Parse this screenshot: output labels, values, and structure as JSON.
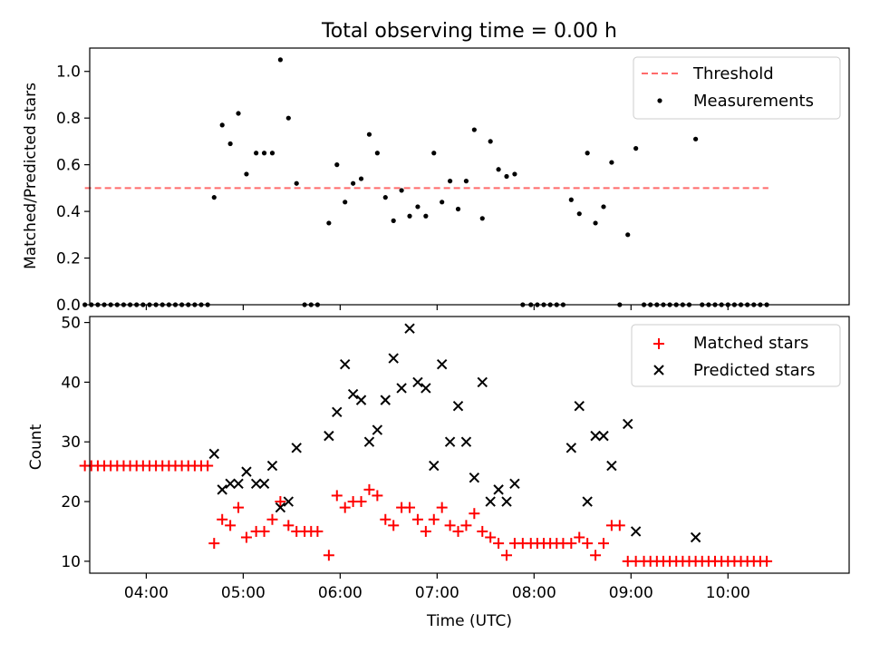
{
  "figure": {
    "title": "Total observing time = 0.00 h"
  },
  "chart_data": [
    {
      "type": "scatter",
      "title": "Total observing time = 0.00 h",
      "xlabel": "",
      "ylabel": "Matched/Predicted stars",
      "xlim": [
        "03:25",
        "11:15"
      ],
      "ylim": [
        0,
        1.1
      ],
      "x_ticks": [
        "04:00",
        "05:00",
        "06:00",
        "07:00",
        "08:00",
        "09:00",
        "10:00"
      ],
      "x_tick_labels_shown": false,
      "y_ticks": [
        0.0,
        0.2,
        0.4,
        0.6,
        0.8,
        1.0
      ],
      "y_tick_labels": [
        "0.0",
        "0.2",
        "0.4",
        "0.6",
        "0.8",
        "1.0"
      ],
      "legend_position": "top-right",
      "grid": false,
      "threshold": {
        "name": "Threshold",
        "value": 0.5,
        "x_range": [
          "03:22",
          "10:25"
        ],
        "style": "dashed",
        "color": "#ff6b6b"
      },
      "series": [
        {
          "name": "Measurements",
          "marker": "dot",
          "color": "#000000",
          "points": [
            [
              "03:22",
              0.0
            ],
            [
              "03:26",
              0.0
            ],
            [
              "03:30",
              0.0
            ],
            [
              "03:34",
              0.0
            ],
            [
              "03:38",
              0.0
            ],
            [
              "03:42",
              0.0
            ],
            [
              "03:46",
              0.0
            ],
            [
              "03:50",
              0.0
            ],
            [
              "03:54",
              0.0
            ],
            [
              "03:58",
              0.0
            ],
            [
              "04:02",
              0.0
            ],
            [
              "04:06",
              0.0
            ],
            [
              "04:10",
              0.0
            ],
            [
              "04:14",
              0.0
            ],
            [
              "04:18",
              0.0
            ],
            [
              "04:22",
              0.0
            ],
            [
              "04:26",
              0.0
            ],
            [
              "04:30",
              0.0
            ],
            [
              "04:34",
              0.0
            ],
            [
              "04:38",
              0.0
            ],
            [
              "04:42",
              0.46
            ],
            [
              "04:47",
              0.77
            ],
            [
              "04:52",
              0.69
            ],
            [
              "04:57",
              0.82
            ],
            [
              "05:02",
              0.56
            ],
            [
              "05:08",
              0.65
            ],
            [
              "05:13",
              0.65
            ],
            [
              "05:18",
              0.65
            ],
            [
              "05:23",
              1.05
            ],
            [
              "05:28",
              0.8
            ],
            [
              "05:33",
              0.52
            ],
            [
              "05:38",
              0.0
            ],
            [
              "05:42",
              0.0
            ],
            [
              "05:46",
              0.0
            ],
            [
              "05:53",
              0.35
            ],
            [
              "05:58",
              0.6
            ],
            [
              "06:03",
              0.44
            ],
            [
              "06:08",
              0.52
            ],
            [
              "06:13",
              0.54
            ],
            [
              "06:18",
              0.73
            ],
            [
              "06:23",
              0.65
            ],
            [
              "06:28",
              0.46
            ],
            [
              "06:33",
              0.36
            ],
            [
              "06:38",
              0.49
            ],
            [
              "06:43",
              0.38
            ],
            [
              "06:48",
              0.42
            ],
            [
              "06:53",
              0.38
            ],
            [
              "06:58",
              0.65
            ],
            [
              "07:03",
              0.44
            ],
            [
              "07:08",
              0.53
            ],
            [
              "07:13",
              0.41
            ],
            [
              "07:18",
              0.53
            ],
            [
              "07:23",
              0.75
            ],
            [
              "07:28",
              0.37
            ],
            [
              "07:33",
              0.7
            ],
            [
              "07:38",
              0.58
            ],
            [
              "07:43",
              0.55
            ],
            [
              "07:48",
              0.56
            ],
            [
              "07:53",
              0.0
            ],
            [
              "07:58",
              0.0
            ],
            [
              "08:02",
              0.0
            ],
            [
              "08:06",
              0.0
            ],
            [
              "08:10",
              0.0
            ],
            [
              "08:14",
              0.0
            ],
            [
              "08:18",
              0.0
            ],
            [
              "08:23",
              0.45
            ],
            [
              "08:28",
              0.39
            ],
            [
              "08:33",
              0.65
            ],
            [
              "08:38",
              0.35
            ],
            [
              "08:43",
              0.42
            ],
            [
              "08:48",
              0.61
            ],
            [
              "08:53",
              0.0
            ],
            [
              "08:58",
              0.3
            ],
            [
              "09:03",
              0.67
            ],
            [
              "09:08",
              0.0
            ],
            [
              "09:12",
              0.0
            ],
            [
              "09:16",
              0.0
            ],
            [
              "09:20",
              0.0
            ],
            [
              "09:24",
              0.0
            ],
            [
              "09:28",
              0.0
            ],
            [
              "09:32",
              0.0
            ],
            [
              "09:36",
              0.0
            ],
            [
              "09:40",
              0.71
            ],
            [
              "09:44",
              0.0
            ],
            [
              "09:48",
              0.0
            ],
            [
              "09:52",
              0.0
            ],
            [
              "09:56",
              0.0
            ],
            [
              "10:00",
              0.0
            ],
            [
              "10:04",
              0.0
            ],
            [
              "10:08",
              0.0
            ],
            [
              "10:12",
              0.0
            ],
            [
              "10:16",
              0.0
            ],
            [
              "10:20",
              0.0
            ],
            [
              "10:24",
              0.0
            ]
          ]
        }
      ]
    },
    {
      "type": "scatter",
      "title": "",
      "xlabel": "Time (UTC)",
      "ylabel": "Count",
      "xlim": [
        "03:25",
        "11:15"
      ],
      "ylim": [
        8,
        51
      ],
      "x_ticks": [
        "04:00",
        "05:00",
        "06:00",
        "07:00",
        "08:00",
        "09:00",
        "10:00"
      ],
      "x_tick_labels": [
        "04:00",
        "05:00",
        "06:00",
        "07:00",
        "08:00",
        "09:00",
        "10:00"
      ],
      "y_ticks": [
        10,
        20,
        30,
        40,
        50
      ],
      "y_tick_labels": [
        "10",
        "20",
        "30",
        "40",
        "50"
      ],
      "legend_position": "top-right",
      "grid": false,
      "series": [
        {
          "name": "Matched stars",
          "marker": "plus",
          "color": "#ff0000",
          "points": [
            [
              "03:22",
              26
            ],
            [
              "03:26",
              26
            ],
            [
              "03:30",
              26
            ],
            [
              "03:34",
              26
            ],
            [
              "03:38",
              26
            ],
            [
              "03:42",
              26
            ],
            [
              "03:46",
              26
            ],
            [
              "03:50",
              26
            ],
            [
              "03:54",
              26
            ],
            [
              "03:58",
              26
            ],
            [
              "04:02",
              26
            ],
            [
              "04:06",
              26
            ],
            [
              "04:10",
              26
            ],
            [
              "04:14",
              26
            ],
            [
              "04:18",
              26
            ],
            [
              "04:22",
              26
            ],
            [
              "04:26",
              26
            ],
            [
              "04:30",
              26
            ],
            [
              "04:34",
              26
            ],
            [
              "04:38",
              26
            ],
            [
              "04:42",
              13
            ],
            [
              "04:47",
              17
            ],
            [
              "04:52",
              16
            ],
            [
              "04:57",
              19
            ],
            [
              "05:02",
              14
            ],
            [
              "05:08",
              15
            ],
            [
              "05:13",
              15
            ],
            [
              "05:18",
              17
            ],
            [
              "05:23",
              20
            ],
            [
              "05:28",
              16
            ],
            [
              "05:33",
              15
            ],
            [
              "05:38",
              15
            ],
            [
              "05:42",
              15
            ],
            [
              "05:46",
              15
            ],
            [
              "05:53",
              11
            ],
            [
              "05:58",
              21
            ],
            [
              "06:03",
              19
            ],
            [
              "06:08",
              20
            ],
            [
              "06:13",
              20
            ],
            [
              "06:18",
              22
            ],
            [
              "06:23",
              21
            ],
            [
              "06:28",
              17
            ],
            [
              "06:33",
              16
            ],
            [
              "06:38",
              19
            ],
            [
              "06:43",
              19
            ],
            [
              "06:48",
              17
            ],
            [
              "06:53",
              15
            ],
            [
              "06:58",
              17
            ],
            [
              "07:03",
              19
            ],
            [
              "07:08",
              16
            ],
            [
              "07:13",
              15
            ],
            [
              "07:18",
              16
            ],
            [
              "07:23",
              18
            ],
            [
              "07:28",
              15
            ],
            [
              "07:33",
              14
            ],
            [
              "07:38",
              13
            ],
            [
              "07:43",
              11
            ],
            [
              "07:48",
              13
            ],
            [
              "07:53",
              13
            ],
            [
              "07:58",
              13
            ],
            [
              "08:02",
              13
            ],
            [
              "08:06",
              13
            ],
            [
              "08:10",
              13
            ],
            [
              "08:14",
              13
            ],
            [
              "08:18",
              13
            ],
            [
              "08:23",
              13
            ],
            [
              "08:28",
              14
            ],
            [
              "08:33",
              13
            ],
            [
              "08:38",
              11
            ],
            [
              "08:43",
              13
            ],
            [
              "08:48",
              16
            ],
            [
              "08:53",
              16
            ],
            [
              "08:58",
              10
            ],
            [
              "09:03",
              10
            ],
            [
              "09:08",
              10
            ],
            [
              "09:12",
              10
            ],
            [
              "09:16",
              10
            ],
            [
              "09:20",
              10
            ],
            [
              "09:24",
              10
            ],
            [
              "09:28",
              10
            ],
            [
              "09:32",
              10
            ],
            [
              "09:36",
              10
            ],
            [
              "09:40",
              10
            ],
            [
              "09:44",
              10
            ],
            [
              "09:48",
              10
            ],
            [
              "09:52",
              10
            ],
            [
              "09:56",
              10
            ],
            [
              "10:00",
              10
            ],
            [
              "10:04",
              10
            ],
            [
              "10:08",
              10
            ],
            [
              "10:12",
              10
            ],
            [
              "10:16",
              10
            ],
            [
              "10:20",
              10
            ],
            [
              "10:24",
              10
            ]
          ]
        },
        {
          "name": "Predicted stars",
          "marker": "cross",
          "color": "#000000",
          "points": [
            [
              "04:42",
              28
            ],
            [
              "04:47",
              22
            ],
            [
              "04:52",
              23
            ],
            [
              "04:57",
              23
            ],
            [
              "05:02",
              25
            ],
            [
              "05:08",
              23
            ],
            [
              "05:13",
              23
            ],
            [
              "05:18",
              26
            ],
            [
              "05:23",
              19
            ],
            [
              "05:28",
              20
            ],
            [
              "05:33",
              29
            ],
            [
              "05:53",
              31
            ],
            [
              "05:58",
              35
            ],
            [
              "06:03",
              43
            ],
            [
              "06:08",
              38
            ],
            [
              "06:13",
              37
            ],
            [
              "06:18",
              30
            ],
            [
              "06:23",
              32
            ],
            [
              "06:28",
              37
            ],
            [
              "06:33",
              44
            ],
            [
              "06:38",
              39
            ],
            [
              "06:43",
              49
            ],
            [
              "06:48",
              40
            ],
            [
              "06:53",
              39
            ],
            [
              "06:58",
              26
            ],
            [
              "07:03",
              43
            ],
            [
              "07:08",
              30
            ],
            [
              "07:13",
              36
            ],
            [
              "07:18",
              30
            ],
            [
              "07:23",
              24
            ],
            [
              "07:28",
              40
            ],
            [
              "07:33",
              20
            ],
            [
              "07:38",
              22
            ],
            [
              "07:43",
              20
            ],
            [
              "07:48",
              23
            ],
            [
              "08:23",
              29
            ],
            [
              "08:28",
              36
            ],
            [
              "08:33",
              20
            ],
            [
              "08:38",
              31
            ],
            [
              "08:43",
              31
            ],
            [
              "08:48",
              26
            ],
            [
              "08:58",
              33
            ],
            [
              "09:03",
              15
            ],
            [
              "09:40",
              14
            ]
          ]
        }
      ]
    }
  ]
}
